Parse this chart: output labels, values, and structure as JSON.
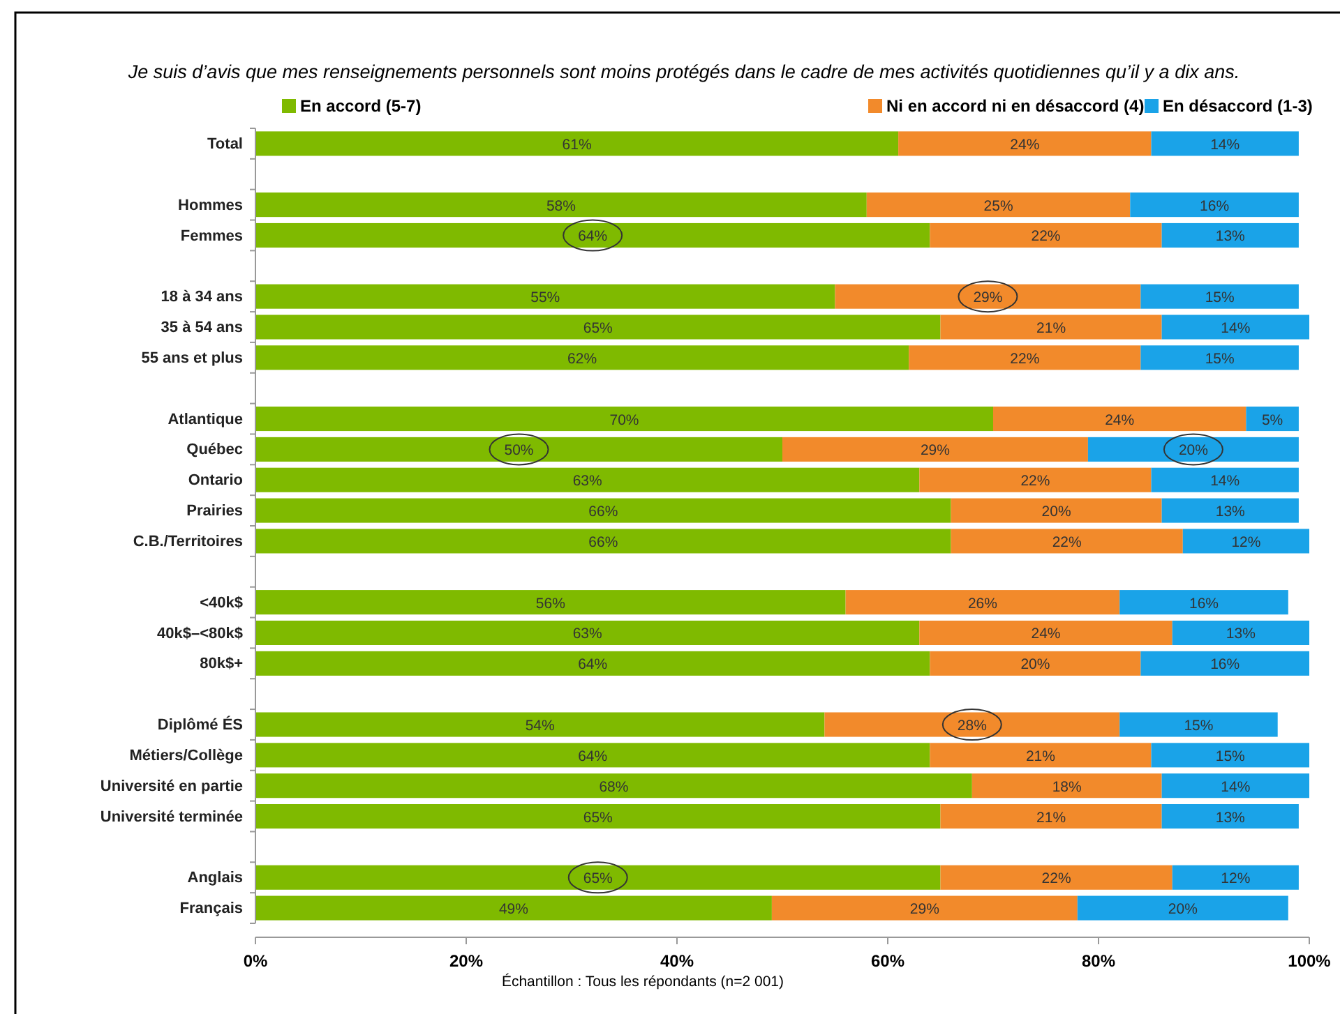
{
  "chart_data": {
    "type": "bar",
    "orientation": "horizontal",
    "stacked": true,
    "title": "Je suis d’avis que mes renseignements personnels sont moins protégés dans le cadre de mes activités quotidiennes qu’il y a dix ans.",
    "categories": [
      "Total",
      null,
      "Hommes",
      "Femmes",
      null,
      "18 à 34 ans",
      "35 à 54 ans",
      "55 ans et plus",
      null,
      "Atlantique",
      "Québec",
      "Ontario",
      "Prairies",
      "C.B./Territoires",
      null,
      "<40k$",
      "40k$–<80k$",
      "80k$+",
      null,
      "Diplômé ÉS",
      "Métiers/Collège",
      "Université en partie",
      "Université terminée",
      null,
      "Anglais",
      "Français"
    ],
    "series": [
      {
        "name": "En accord (5-7)",
        "color": "#7fba00",
        "values": [
          61,
          null,
          58,
          64,
          null,
          55,
          65,
          62,
          null,
          70,
          50,
          63,
          66,
          66,
          null,
          56,
          63,
          64,
          null,
          54,
          64,
          68,
          65,
          null,
          65,
          49
        ],
        "value_labels": [
          "61%",
          null,
          "58%",
          "64%",
          null,
          "55%",
          "65%",
          "62%",
          null,
          "70%",
          "50%",
          "63%",
          "66%",
          "66%",
          null,
          "56%",
          "63%",
          "64%",
          null,
          "54%",
          "64%",
          "68%",
          "65%",
          null,
          "65%",
          "49%"
        ]
      },
      {
        "name": "Ni en accord ni en désaccord (4)",
        "color": "#f28a2b",
        "values": [
          24,
          null,
          25,
          22,
          null,
          29,
          21,
          22,
          null,
          24,
          29,
          22,
          20,
          22,
          null,
          26,
          24,
          20,
          null,
          28,
          21,
          18,
          21,
          null,
          22,
          29
        ],
        "value_labels": [
          "24%",
          null,
          "25%",
          "22%",
          null,
          "29%",
          "21%",
          "22%",
          null,
          "24%",
          "29%",
          "22%",
          "20%",
          "22%",
          null,
          "26%",
          "24%",
          "20%",
          null,
          "28%",
          "21%",
          "18%",
          "21%",
          null,
          "22%",
          "29%"
        ]
      },
      {
        "name": "En désaccord (1-3)",
        "color": "#1aa3e8",
        "values": [
          14,
          null,
          16,
          13,
          null,
          15,
          14,
          15,
          null,
          5,
          20,
          14,
          13,
          12,
          null,
          16,
          13,
          16,
          null,
          15,
          15,
          14,
          13,
          null,
          12,
          20
        ],
        "value_labels": [
          "14%",
          null,
          "16%",
          "13%",
          null,
          "15%",
          "14%",
          "15%",
          null,
          "5%",
          "20%",
          "14%",
          "13%",
          "12%",
          null,
          "16%",
          "13%",
          "16%",
          null,
          "15%",
          "15%",
          "14%",
          "13%",
          null,
          "12%",
          "20%"
        ]
      }
    ],
    "xlim": [
      0,
      100
    ],
    "xticks": [
      {
        "value": 0,
        "label": "0%"
      },
      {
        "value": 20,
        "label": "20%"
      },
      {
        "value": 40,
        "label": "40%"
      },
      {
        "value": 60,
        "label": "60%"
      },
      {
        "value": 80,
        "label": "80%"
      },
      {
        "value": 100,
        "label": "100%"
      }
    ],
    "grid": false,
    "legend": "top",
    "annotations": [
      "Échantillon : Tous les répondants (n=2 001)"
    ]
  }
}
